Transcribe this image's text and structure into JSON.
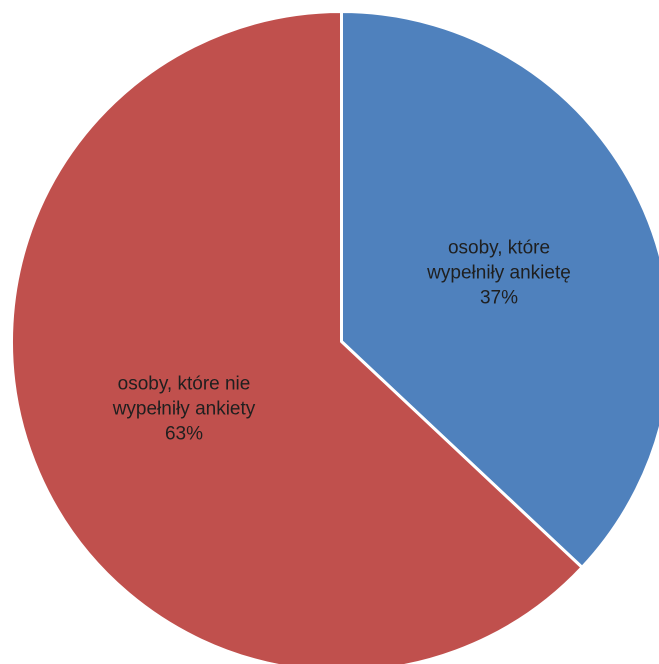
{
  "chart_data": {
    "type": "pie",
    "categories": [
      "osoby, które wypełniły ankietę",
      "osoby, które nie wypełniły ankiety"
    ],
    "values": [
      37,
      63
    ],
    "value_unit": "%",
    "slices": [
      {
        "label_lines": [
          "osoby, które",
          "wypełniły ankietę"
        ],
        "value_text": "37%",
        "color": "#4F81BD"
      },
      {
        "label_lines": [
          "osoby, które nie",
          "wypełniły ankiety"
        ],
        "value_text": "63%",
        "color": "#C0504D"
      }
    ],
    "start_angle_degrees": 0,
    "direction": "clockwise",
    "slice_border_color": "#ffffff",
    "legend": "none",
    "title": ""
  }
}
